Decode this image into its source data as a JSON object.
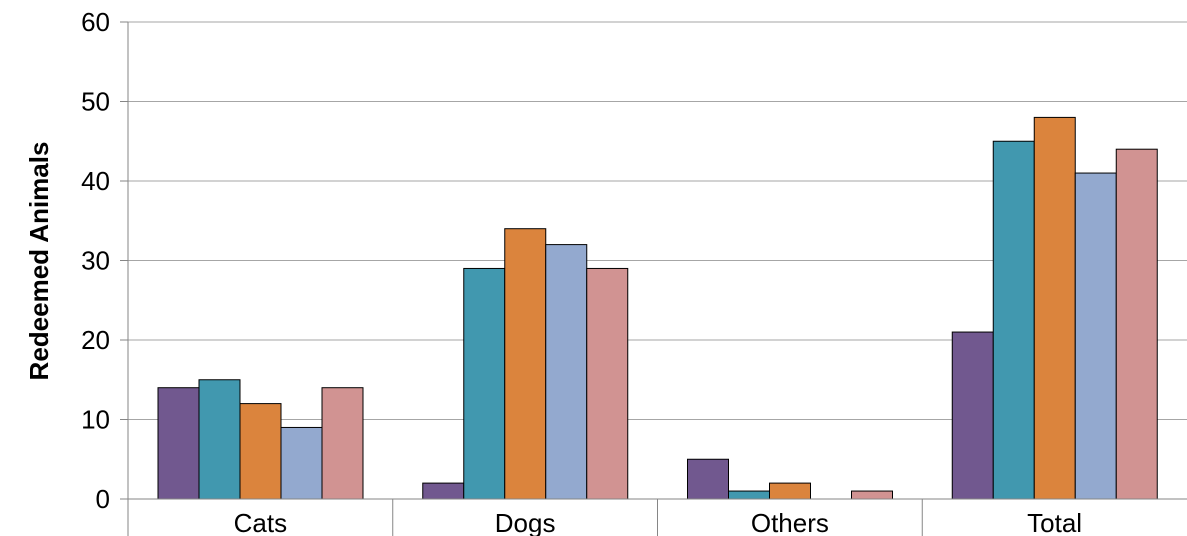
{
  "chart_data": {
    "type": "bar",
    "title": "",
    "xlabel": "",
    "ylabel": "Redeemed Animals",
    "ylim": [
      0,
      60
    ],
    "yticks": [
      0,
      10,
      20,
      30,
      40,
      50,
      60
    ],
    "grid": true,
    "legend": "none",
    "categories": [
      "Cats",
      "Dogs",
      "Others",
      "Total"
    ],
    "series": [
      {
        "color": "#71588f",
        "values": [
          14,
          2,
          5,
          21
        ]
      },
      {
        "color": "#4198af",
        "values": [
          15,
          29,
          1,
          45
        ]
      },
      {
        "color": "#db843d",
        "values": [
          12,
          34,
          2,
          48
        ]
      },
      {
        "color": "#93a9cf",
        "values": [
          9,
          32,
          0,
          41
        ]
      },
      {
        "color": "#d19392",
        "values": [
          14,
          29,
          1,
          44
        ]
      }
    ]
  }
}
